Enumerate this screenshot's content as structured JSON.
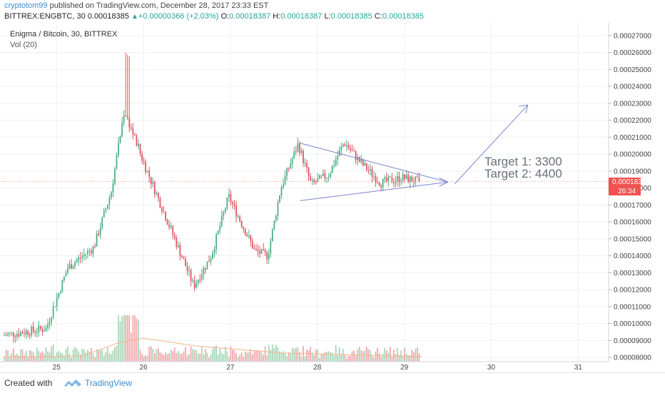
{
  "header": {
    "author": "cryptotom99",
    "published_text": " published on TradingView.com, December 28, 2017 23:33 EST",
    "symbol_line": "BITTREX:ENGBTC, 30",
    "last": "0.00018385",
    "change": "+0.00000366 (+2.03%)",
    "o_label": "O:",
    "o_value": "0.00018387",
    "h_label": "H:",
    "h_value": "0.00018387",
    "l_label": "L:",
    "l_value": "0.00018385",
    "c_label": "C:",
    "c_value": "0.00018385"
  },
  "legend": {
    "title": "Enigma / Bitcoin, 30, BITTREX",
    "volume": "Vol (20)"
  },
  "price_tag": {
    "value": "0.00018385",
    "countdown": "26:34",
    "color": "#ef5350"
  },
  "annotations": {
    "target1": "Target 1: 3300",
    "target2": "Target 2: 4400"
  },
  "footer": {
    "created_with": "Created with",
    "brand": "TradingView"
  },
  "colors": {
    "up": "#4caf82",
    "down": "#e05565",
    "vol_up": "#a8d8b8",
    "vol_down": "#f2a9ae",
    "drawing": "#7b83d1",
    "vol_ma": "#f5b48a"
  },
  "chart_data": {
    "type": "candlestick",
    "title": "Enigma / Bitcoin, 30, BITTREX",
    "interval_minutes": 30,
    "y_scale": "price (BTC)",
    "ylim": [
      7.75e-05,
      0.0002775
    ],
    "y_ticks": [
      "0.00008000",
      "0.00009000",
      "0.00010000",
      "0.00011000",
      "0.00012000",
      "0.00013000",
      "0.00014000",
      "0.00015000",
      "0.00016000",
      "0.00017000",
      "0.00018000",
      "0.00019000",
      "0.00020000",
      "0.00021000",
      "0.00022000",
      "0.00023000",
      "0.00024000",
      "0.00025000",
      "0.00026000",
      "0.00027000"
    ],
    "x_ticks": [
      "25",
      "26",
      "27",
      "28",
      "29",
      "30",
      "31"
    ],
    "x_range_days": [
      24.35,
      31.35
    ],
    "x_axis_dates": "December 2017 (day of month)",
    "key_points": [
      {
        "day": 24.4,
        "price": 9.3e-05
      },
      {
        "day": 24.9,
        "price": 9.7e-05
      },
      {
        "day": 25.15,
        "price": 0.000133
      },
      {
        "day": 25.45,
        "price": 0.000145
      },
      {
        "day": 25.65,
        "price": 0.000178
      },
      {
        "day": 25.8,
        "price": 0.000226
      },
      {
        "day": 26.0,
        "price": 0.000198
      },
      {
        "day": 26.3,
        "price": 0.00016
      },
      {
        "day": 26.6,
        "price": 0.000122
      },
      {
        "day": 26.8,
        "price": 0.00014
      },
      {
        "day": 27.0,
        "price": 0.000175
      },
      {
        "day": 27.3,
        "price": 0.000143
      },
      {
        "day": 27.45,
        "price": 0.00014
      },
      {
        "day": 27.6,
        "price": 0.00018
      },
      {
        "day": 27.8,
        "price": 0.000206
      },
      {
        "day": 27.95,
        "price": 0.000182
      },
      {
        "day": 28.15,
        "price": 0.000188
      },
      {
        "day": 28.33,
        "price": 0.000207
      },
      {
        "day": 28.5,
        "price": 0.000196
      },
      {
        "day": 28.75,
        "price": 0.000183
      },
      {
        "day": 29.0,
        "price": 0.000186
      },
      {
        "day": 29.18,
        "price": 0.00018385
      }
    ],
    "volume_ma_points": [
      {
        "day": 24.4,
        "v": 0.6
      },
      {
        "day": 25.3,
        "v": 0.8
      },
      {
        "day": 25.7,
        "v": 2.6
      },
      {
        "day": 26.0,
        "v": 3.3
      },
      {
        "day": 26.6,
        "v": 2.2
      },
      {
        "day": 27.6,
        "v": 1.2
      },
      {
        "day": 29.2,
        "v": 0.7
      }
    ],
    "drawings": {
      "triangle_upper": [
        {
          "day": 27.8,
          "price": 0.0002065
        },
        {
          "day": 29.5,
          "price": 0.0001835
        }
      ],
      "triangle_lower": [
        {
          "day": 27.8,
          "price": 0.0001725
        },
        {
          "day": 29.5,
          "price": 0.0001835
        }
      ],
      "target_arrow": [
        {
          "day": 29.58,
          "price": 0.0001825
        },
        {
          "day": 30.42,
          "price": 0.000229
        }
      ]
    }
  }
}
